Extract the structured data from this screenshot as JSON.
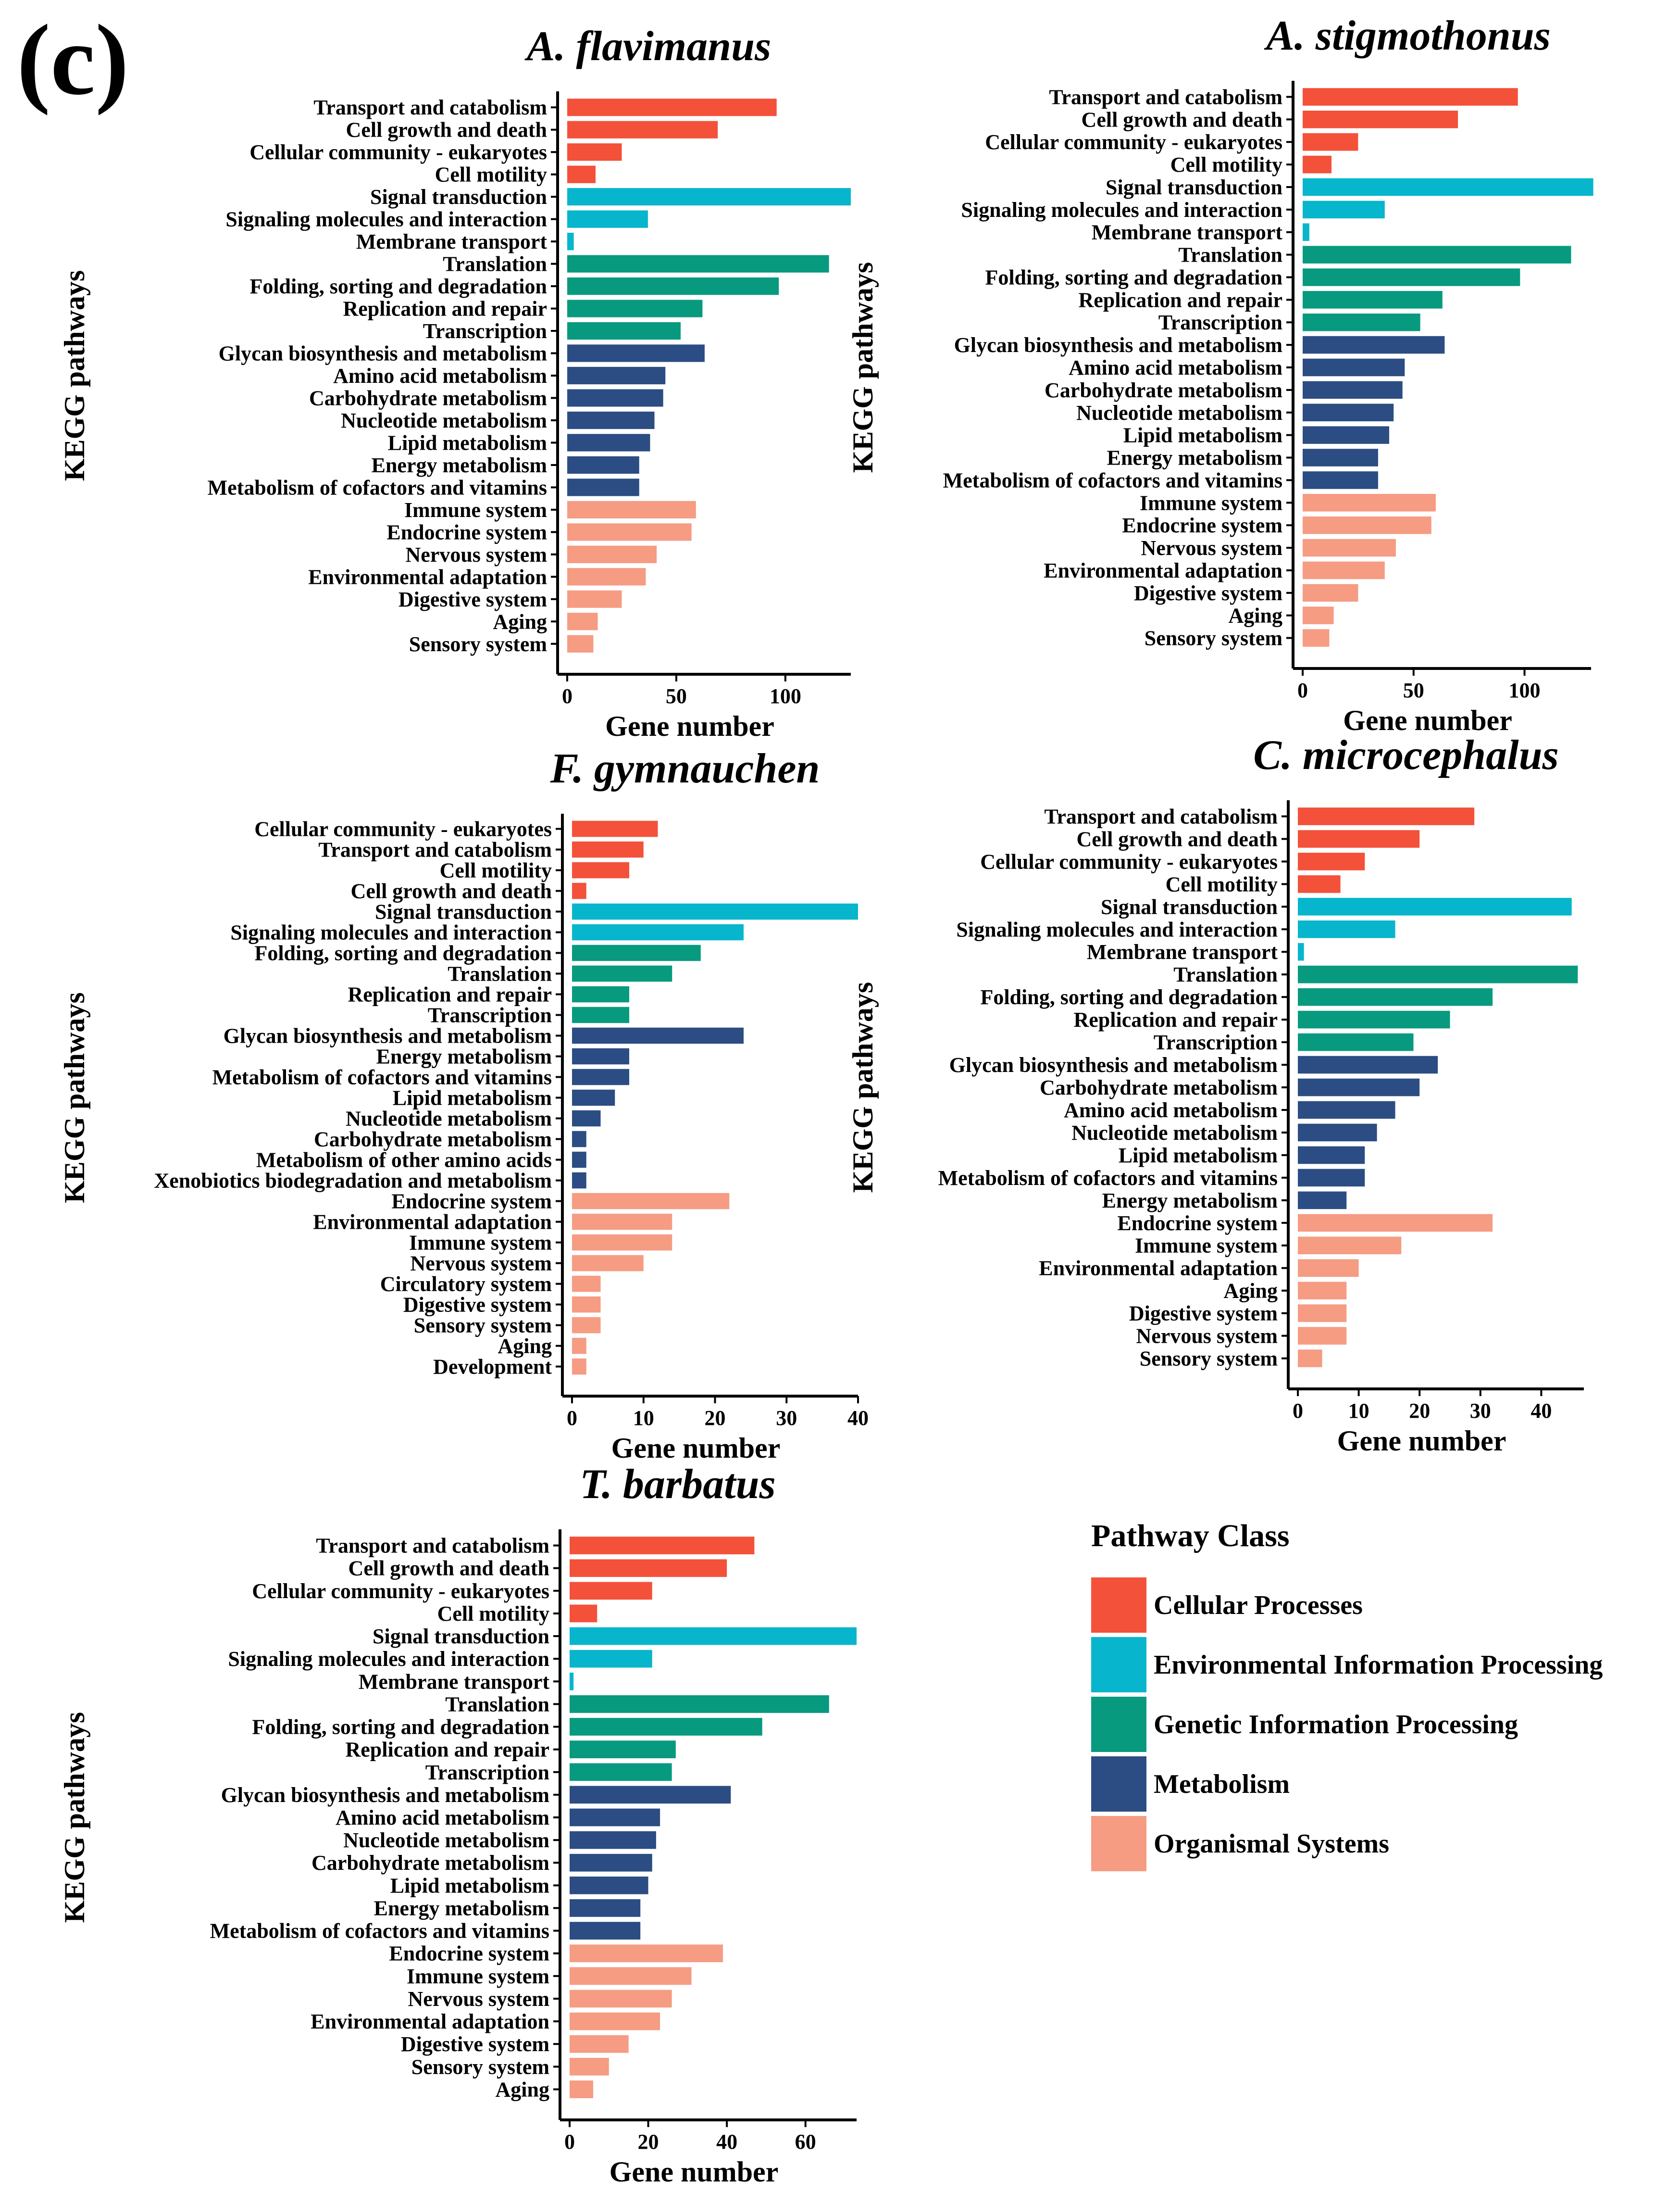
{
  "figure": {
    "panel_label": "(c)"
  },
  "colors": {
    "Cellular Processes": "#F4513A",
    "Environmental Information Processing": "#07B6CC",
    "Genetic Information Processing": "#079A7F",
    "Metabolism": "#2C4D83",
    "Organismal Systems": "#F59C83"
  },
  "legend": {
    "title": "Pathway Class",
    "items": [
      "Cellular Processes",
      "Environmental Information Processing",
      "Genetic Information Processing",
      "Metabolism",
      "Organismal Systems"
    ]
  },
  "chart_data": [
    {
      "type": "bar",
      "orientation": "horizontal",
      "title": "A. flavimanus",
      "xlabel": "Gene number",
      "ylabel": "KEGG pathways",
      "xlim": [
        0,
        130
      ],
      "xticks": [
        0,
        50,
        100
      ],
      "categories": [
        "Transport and catabolism",
        "Cell growth and death",
        "Cellular community - eukaryotes",
        "Cell motility",
        "Signal transduction",
        "Signaling molecules and interaction",
        "Membrane transport",
        "Translation",
        "Folding, sorting and degradation",
        "Replication and repair",
        "Transcription",
        "Glycan biosynthesis and metabolism",
        "Amino acid metabolism",
        "Carbohydrate metabolism",
        "Nucleotide metabolism",
        "Lipid metabolism",
        "Energy metabolism",
        "Metabolism of cofactors and vitamins",
        "Immune system",
        "Endocrine system",
        "Nervous system",
        "Environmental adaptation",
        "Digestive system",
        "Aging",
        "Sensory system"
      ],
      "values": [
        96,
        69,
        25,
        13,
        130,
        37,
        3,
        120,
        97,
        62,
        52,
        63,
        45,
        44,
        40,
        38,
        33,
        33,
        59,
        57,
        41,
        36,
        25,
        14,
        12
      ],
      "classes": [
        "Cellular Processes",
        "Cellular Processes",
        "Cellular Processes",
        "Cellular Processes",
        "Environmental Information Processing",
        "Environmental Information Processing",
        "Environmental Information Processing",
        "Genetic Information Processing",
        "Genetic Information Processing",
        "Genetic Information Processing",
        "Genetic Information Processing",
        "Metabolism",
        "Metabolism",
        "Metabolism",
        "Metabolism",
        "Metabolism",
        "Metabolism",
        "Metabolism",
        "Organismal Systems",
        "Organismal Systems",
        "Organismal Systems",
        "Organismal Systems",
        "Organismal Systems",
        "Organismal Systems",
        "Organismal Systems"
      ]
    },
    {
      "type": "bar",
      "orientation": "horizontal",
      "title": "A. stigmothonus",
      "xlabel": "Gene number",
      "ylabel": "KEGG pathways",
      "xlim": [
        0,
        130
      ],
      "xticks": [
        0,
        50,
        100
      ],
      "categories": [
        "Transport and catabolism",
        "Cell growth and death",
        "Cellular community - eukaryotes",
        "Cell motility",
        "Signal transduction",
        "Signaling molecules and interaction",
        "Membrane transport",
        "Translation",
        "Folding, sorting and degradation",
        "Replication and repair",
        "Transcription",
        "Glycan biosynthesis and metabolism",
        "Amino acid metabolism",
        "Carbohydrate metabolism",
        "Nucleotide metabolism",
        "Lipid metabolism",
        "Energy metabolism",
        "Metabolism of cofactors and vitamins",
        "Immune system",
        "Endocrine system",
        "Nervous system",
        "Environmental adaptation",
        "Digestive system",
        "Aging",
        "Sensory system"
      ],
      "values": [
        97,
        70,
        25,
        13,
        131,
        37,
        3,
        121,
        98,
        63,
        53,
        64,
        46,
        45,
        41,
        39,
        34,
        34,
        60,
        58,
        42,
        37,
        25,
        14,
        12
      ],
      "classes": [
        "Cellular Processes",
        "Cellular Processes",
        "Cellular Processes",
        "Cellular Processes",
        "Environmental Information Processing",
        "Environmental Information Processing",
        "Environmental Information Processing",
        "Genetic Information Processing",
        "Genetic Information Processing",
        "Genetic Information Processing",
        "Genetic Information Processing",
        "Metabolism",
        "Metabolism",
        "Metabolism",
        "Metabolism",
        "Metabolism",
        "Metabolism",
        "Metabolism",
        "Organismal Systems",
        "Organismal Systems",
        "Organismal Systems",
        "Organismal Systems",
        "Organismal Systems",
        "Organismal Systems",
        "Organismal Systems"
      ]
    },
    {
      "type": "bar",
      "orientation": "horizontal",
      "title": "F. gymnauchen",
      "xlabel": "Gene number",
      "ylabel": "KEGG pathways",
      "xlim": [
        0,
        40
      ],
      "xticks": [
        0,
        10,
        20,
        30,
        40
      ],
      "categories": [
        "Cellular community - eukaryotes",
        "Transport and catabolism",
        "Cell motility",
        "Cell growth and death",
        "Signal transduction",
        "Signaling molecules and interaction",
        "Folding, sorting and degradation",
        "Translation",
        "Replication and repair",
        "Transcription",
        "Glycan biosynthesis and metabolism",
        "Energy metabolism",
        "Metabolism of cofactors and vitamins",
        "Lipid metabolism",
        "Nucleotide metabolism",
        "Carbohydrate metabolism",
        "Metabolism of other amino acids",
        "Xenobiotics biodegradation and metabolism",
        "Endocrine system",
        "Environmental adaptation",
        "Immune system",
        "Nervous system",
        "Circulatory system",
        "Digestive system",
        "Sensory system",
        "Aging",
        "Development"
      ],
      "values": [
        12,
        10,
        8,
        2,
        40,
        24,
        18,
        14,
        8,
        8,
        24,
        8,
        8,
        6,
        4,
        2,
        2,
        2,
        22,
        14,
        14,
        10,
        4,
        4,
        4,
        2,
        2
      ],
      "classes": [
        "Cellular Processes",
        "Cellular Processes",
        "Cellular Processes",
        "Cellular Processes",
        "Environmental Information Processing",
        "Environmental Information Processing",
        "Genetic Information Processing",
        "Genetic Information Processing",
        "Genetic Information Processing",
        "Genetic Information Processing",
        "Metabolism",
        "Metabolism",
        "Metabolism",
        "Metabolism",
        "Metabolism",
        "Metabolism",
        "Metabolism",
        "Metabolism",
        "Organismal Systems",
        "Organismal Systems",
        "Organismal Systems",
        "Organismal Systems",
        "Organismal Systems",
        "Organismal Systems",
        "Organismal Systems",
        "Organismal Systems",
        "Organismal Systems"
      ]
    },
    {
      "type": "bar",
      "orientation": "horizontal",
      "title": "C. microcephalus",
      "xlabel": "Gene number",
      "ylabel": "KEGG pathways",
      "xlim": [
        0,
        47
      ],
      "xticks": [
        0,
        10,
        20,
        30,
        40
      ],
      "categories": [
        "Transport and catabolism",
        "Cell growth and death",
        "Cellular community - eukaryotes",
        "Cell motility",
        "Signal transduction",
        "Signaling molecules and interaction",
        "Membrane transport",
        "Translation",
        "Folding, sorting and degradation",
        "Replication and repair",
        "Transcription",
        "Glycan biosynthesis and metabolism",
        "Carbohydrate metabolism",
        "Amino acid metabolism",
        "Nucleotide metabolism",
        "Lipid metabolism",
        "Metabolism of cofactors and vitamins",
        "Energy metabolism",
        "Endocrine system",
        "Immune system",
        "Environmental adaptation",
        "Aging",
        "Digestive system",
        "Nervous system",
        "Sensory system"
      ],
      "values": [
        29,
        20,
        11,
        7,
        45,
        16,
        1,
        46,
        32,
        25,
        19,
        23,
        20,
        16,
        13,
        11,
        11,
        8,
        32,
        17,
        10,
        8,
        8,
        8,
        4
      ],
      "classes": [
        "Cellular Processes",
        "Cellular Processes",
        "Cellular Processes",
        "Cellular Processes",
        "Environmental Information Processing",
        "Environmental Information Processing",
        "Environmental Information Processing",
        "Genetic Information Processing",
        "Genetic Information Processing",
        "Genetic Information Processing",
        "Genetic Information Processing",
        "Metabolism",
        "Metabolism",
        "Metabolism",
        "Metabolism",
        "Metabolism",
        "Metabolism",
        "Metabolism",
        "Organismal Systems",
        "Organismal Systems",
        "Organismal Systems",
        "Organismal Systems",
        "Organismal Systems",
        "Organismal Systems",
        "Organismal Systems"
      ]
    },
    {
      "type": "bar",
      "orientation": "horizontal",
      "title": "T. barbatus",
      "xlabel": "Gene number",
      "ylabel": "KEGG pathways",
      "xlim": [
        0,
        73
      ],
      "xticks": [
        0,
        20,
        40,
        60
      ],
      "categories": [
        "Transport and catabolism",
        "Cell growth and death",
        "Cellular community - eukaryotes",
        "Cell motility",
        "Signal transduction",
        "Signaling molecules and interaction",
        "Membrane transport",
        "Translation",
        "Folding, sorting and degradation",
        "Replication and repair",
        "Transcription",
        "Glycan biosynthesis and metabolism",
        "Amino acid metabolism",
        "Nucleotide metabolism",
        "Carbohydrate metabolism",
        "Lipid metabolism",
        "Energy metabolism",
        "Metabolism of cofactors and vitamins",
        "Endocrine system",
        "Immune system",
        "Nervous system",
        "Environmental adaptation",
        "Digestive system",
        "Sensory system",
        "Aging"
      ],
      "values": [
        47,
        40,
        21,
        7,
        73,
        21,
        1,
        66,
        49,
        27,
        26,
        41,
        23,
        22,
        21,
        20,
        18,
        18,
        39,
        31,
        26,
        23,
        15,
        10,
        6
      ],
      "classes": [
        "Cellular Processes",
        "Cellular Processes",
        "Cellular Processes",
        "Cellular Processes",
        "Environmental Information Processing",
        "Environmental Information Processing",
        "Environmental Information Processing",
        "Genetic Information Processing",
        "Genetic Information Processing",
        "Genetic Information Processing",
        "Genetic Information Processing",
        "Metabolism",
        "Metabolism",
        "Metabolism",
        "Metabolism",
        "Metabolism",
        "Metabolism",
        "Metabolism",
        "Organismal Systems",
        "Organismal Systems",
        "Organismal Systems",
        "Organismal Systems",
        "Organismal Systems",
        "Organismal Systems",
        "Organismal Systems"
      ]
    }
  ]
}
